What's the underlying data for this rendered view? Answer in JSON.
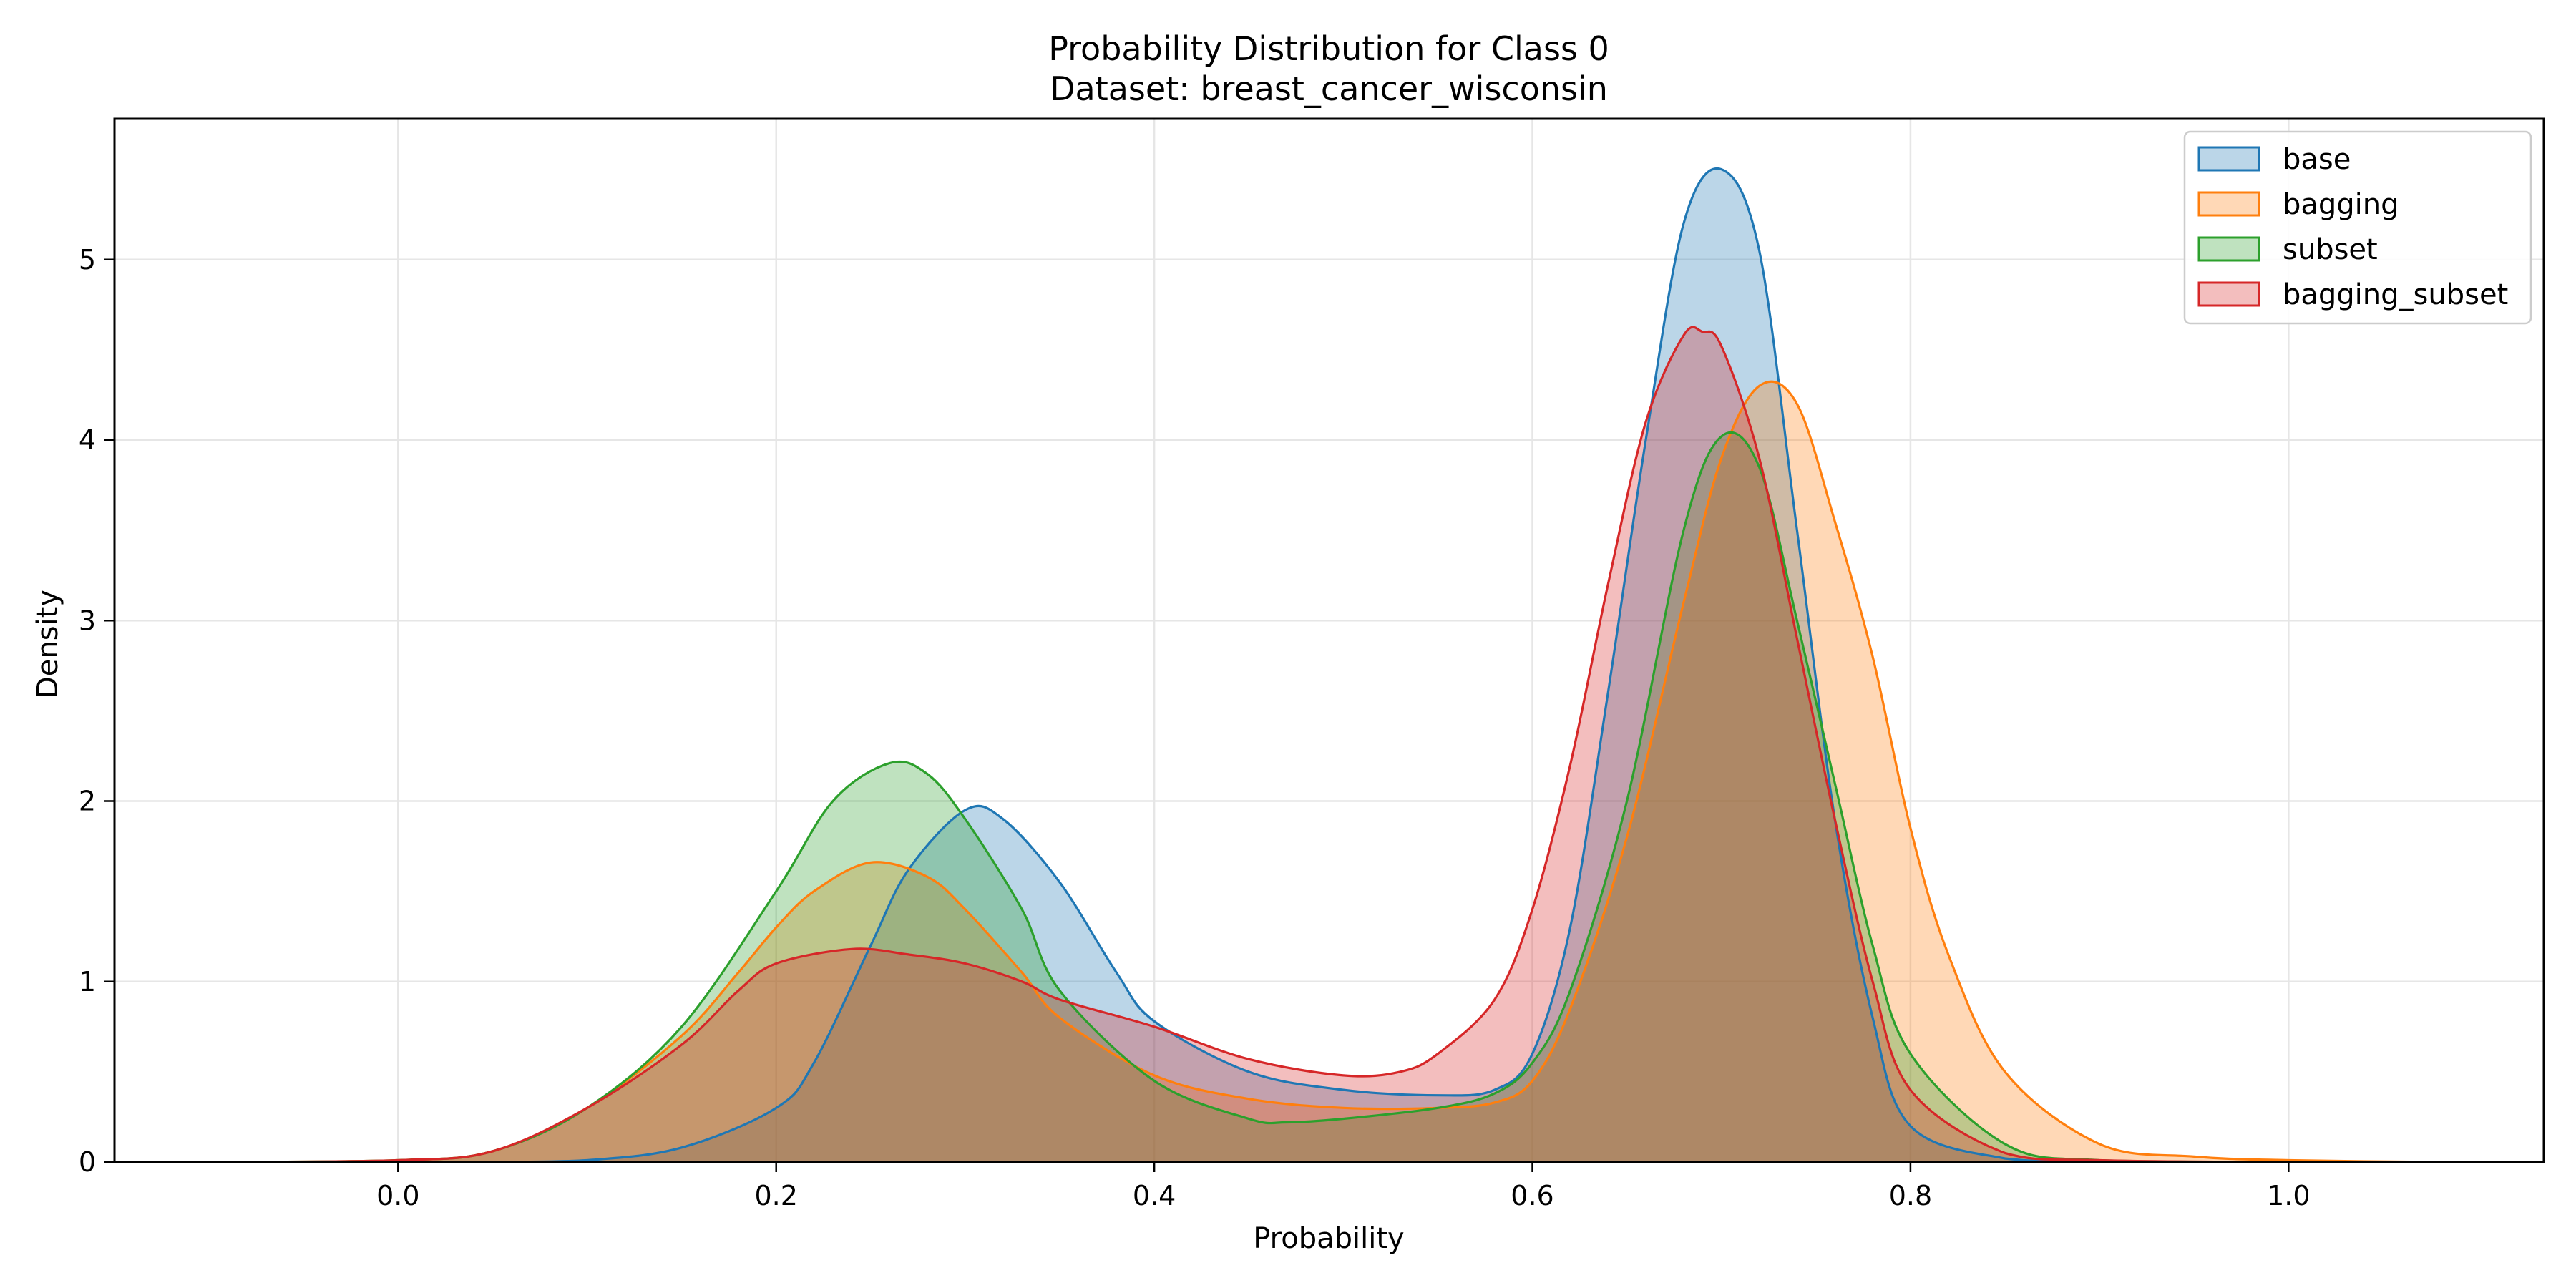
{
  "chart_data": {
    "type": "area",
    "title": "Probability Distribution for Class 0",
    "subtitle": "Dataset: breast_cancer_wisconsin",
    "xlabel": "Probability",
    "ylabel": "Density",
    "xlim": [
      -0.15,
      1.135
    ],
    "ylim": [
      0,
      5.78
    ],
    "xticks": [
      0.0,
      0.2,
      0.4,
      0.6,
      0.8,
      1.0
    ],
    "xtick_labels": [
      "0.0",
      "0.2",
      "0.4",
      "0.6",
      "0.8",
      "1.0"
    ],
    "yticks": [
      0,
      1,
      2,
      3,
      4,
      5
    ],
    "ytick_labels": [
      "0",
      "1",
      "2",
      "3",
      "4",
      "5"
    ],
    "grid": true,
    "legend_position": "top-right",
    "series": [
      {
        "name": "base",
        "color": "#1f77b4",
        "x": [
          -0.1,
          0.0,
          0.05,
          0.1,
          0.15,
          0.2,
          0.22,
          0.25,
          0.27,
          0.3,
          0.32,
          0.35,
          0.38,
          0.4,
          0.45,
          0.5,
          0.55,
          0.58,
          0.6,
          0.62,
          0.64,
          0.66,
          0.68,
          0.7,
          0.72,
          0.74,
          0.76,
          0.78,
          0.8,
          0.85,
          0.9,
          1.0,
          1.08
        ],
        "y": [
          0,
          0,
          0,
          0.01,
          0.08,
          0.3,
          0.55,
          1.2,
          1.62,
          1.95,
          1.9,
          1.55,
          1.05,
          0.78,
          0.5,
          0.4,
          0.37,
          0.4,
          0.6,
          1.3,
          2.6,
          4.0,
          5.2,
          5.5,
          5.05,
          3.5,
          1.9,
          0.8,
          0.2,
          0.02,
          0,
          0,
          0
        ]
      },
      {
        "name": "bagging",
        "color": "#ff7f0e",
        "x": [
          -0.1,
          0.0,
          0.05,
          0.1,
          0.15,
          0.18,
          0.2,
          0.22,
          0.25,
          0.28,
          0.3,
          0.33,
          0.35,
          0.4,
          0.45,
          0.5,
          0.55,
          0.58,
          0.6,
          0.62,
          0.65,
          0.68,
          0.7,
          0.72,
          0.74,
          0.76,
          0.78,
          0.8,
          0.82,
          0.85,
          0.9,
          0.95,
          1.0,
          1.08
        ],
        "y": [
          0,
          0.01,
          0.06,
          0.3,
          0.7,
          1.05,
          1.3,
          1.5,
          1.66,
          1.58,
          1.4,
          1.05,
          0.8,
          0.48,
          0.35,
          0.3,
          0.3,
          0.33,
          0.45,
          0.85,
          1.8,
          3.1,
          3.9,
          4.3,
          4.2,
          3.55,
          2.8,
          1.85,
          1.15,
          0.5,
          0.1,
          0.03,
          0.01,
          0
        ]
      },
      {
        "name": "subset",
        "color": "#2ca02c",
        "x": [
          -0.1,
          0.0,
          0.05,
          0.1,
          0.15,
          0.2,
          0.23,
          0.26,
          0.28,
          0.3,
          0.33,
          0.35,
          0.4,
          0.45,
          0.47,
          0.5,
          0.55,
          0.58,
          0.6,
          0.62,
          0.65,
          0.68,
          0.7,
          0.72,
          0.74,
          0.76,
          0.78,
          0.8,
          0.85,
          0.9,
          1.0,
          1.08
        ],
        "y": [
          0,
          0.01,
          0.06,
          0.3,
          0.75,
          1.5,
          2.0,
          2.21,
          2.15,
          1.9,
          1.4,
          0.95,
          0.45,
          0.24,
          0.22,
          0.24,
          0.3,
          0.38,
          0.55,
          0.95,
          2.0,
          3.5,
          4.02,
          3.85,
          3.0,
          2.1,
          1.2,
          0.6,
          0.1,
          0.01,
          0,
          0
        ]
      },
      {
        "name": "bagging_subset",
        "color": "#d62728",
        "x": [
          -0.1,
          0.0,
          0.05,
          0.1,
          0.15,
          0.18,
          0.2,
          0.24,
          0.27,
          0.3,
          0.33,
          0.35,
          0.4,
          0.45,
          0.5,
          0.53,
          0.55,
          0.58,
          0.6,
          0.62,
          0.64,
          0.66,
          0.68,
          0.69,
          0.7,
          0.72,
          0.74,
          0.76,
          0.78,
          0.8,
          0.85,
          0.9,
          1.0,
          1.08
        ],
        "y": [
          0,
          0.01,
          0.06,
          0.3,
          0.65,
          0.95,
          1.1,
          1.18,
          1.15,
          1.1,
          1.0,
          0.9,
          0.75,
          0.57,
          0.48,
          0.5,
          0.6,
          0.9,
          1.4,
          2.2,
          3.2,
          4.1,
          4.58,
          4.6,
          4.52,
          3.9,
          2.9,
          1.9,
          1.0,
          0.4,
          0.05,
          0.01,
          0,
          0
        ]
      }
    ]
  }
}
